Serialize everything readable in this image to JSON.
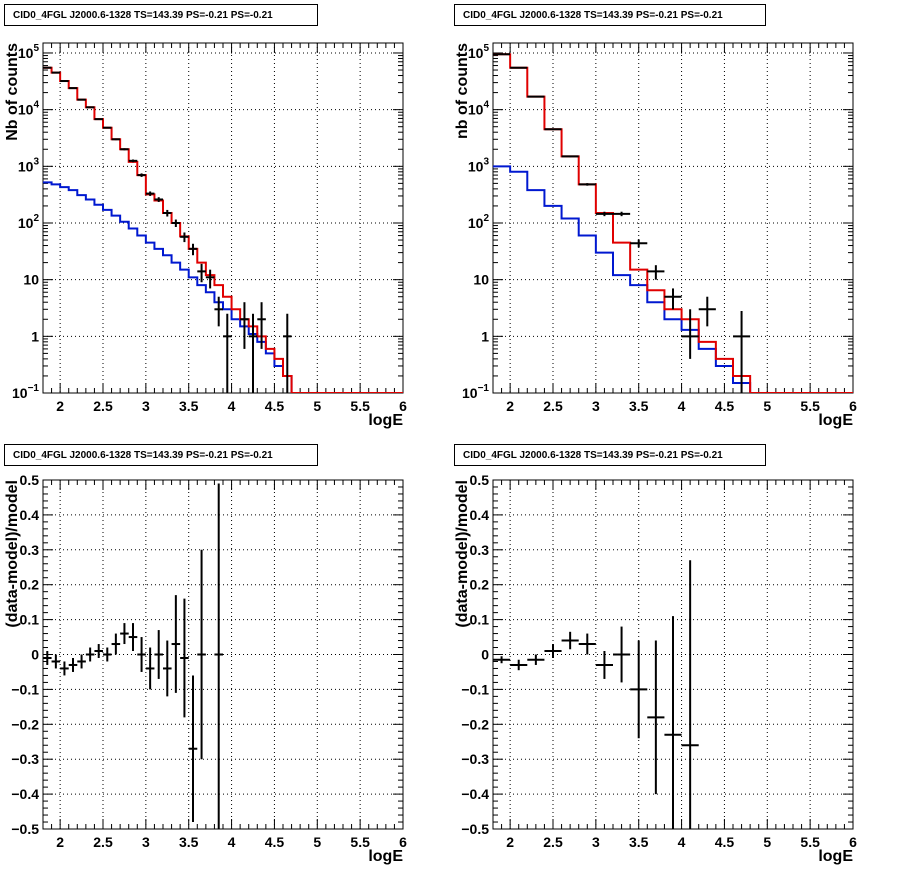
{
  "colors": {
    "data": "#000000",
    "model_total": "#e00000",
    "model_component": "#0018d0",
    "grid": "#000000"
  },
  "chart_data": [
    {
      "type": "line",
      "title": "CID0_4FGL J2000.6-1328 TS=143.39 PS=-0.21 PS=-0.21",
      "xlabel": "logE",
      "ylabel": "Nb of counts",
      "xlim": [
        1.8,
        6.0
      ],
      "ylim": [
        0.1,
        150000
      ],
      "yscale": "log",
      "grid": true,
      "xticks": [
        "2",
        "2.5",
        "3",
        "3.5",
        "4",
        "4.5",
        "5",
        "5.5",
        "6"
      ],
      "yticks": [
        {
          "v": 0.1,
          "label": "10^-1"
        },
        {
          "v": 1,
          "label": "1"
        },
        {
          "v": 10,
          "label": "10"
        },
        {
          "v": 100,
          "label": "10^2"
        },
        {
          "v": 1000,
          "label": "10^3"
        },
        {
          "v": 10000,
          "label": "10^4"
        },
        {
          "v": 100000,
          "label": "10^5"
        }
      ],
      "bin_edges": [
        1.8,
        1.9,
        2.0,
        2.1,
        2.2,
        2.3,
        2.4,
        2.5,
        2.6,
        2.7,
        2.8,
        2.9,
        3.0,
        3.1,
        3.2,
        3.3,
        3.4,
        3.5,
        3.6,
        3.7,
        3.8,
        3.9,
        4.0,
        4.1,
        4.2,
        4.3,
        4.4,
        4.5,
        4.6,
        4.7,
        4.8,
        4.9,
        5.0,
        5.1,
        5.2,
        5.3,
        5.4,
        5.5,
        5.6,
        5.7,
        5.8,
        5.9,
        6.0
      ],
      "series": [
        {
          "values": [
            55000,
            45000,
            32000,
            24000,
            15000,
            11000,
            6800,
            4800,
            3000,
            2000,
            1200,
            700,
            320,
            250,
            150,
            100,
            58,
            35,
            20,
            12,
            8,
            5,
            3,
            2,
            1.5,
            1,
            0.6,
            0.4,
            0.2,
            0.1,
            0.1,
            0.1,
            0.1,
            0.1,
            0.1,
            0.1,
            0.1,
            0.1,
            0.1,
            0.1,
            0.1,
            0.1
          ]
        },
        {
          "values": [
            520,
            480,
            430,
            380,
            310,
            260,
            210,
            170,
            135,
            105,
            80,
            60,
            45,
            35,
            27,
            20,
            15,
            11,
            8,
            6,
            4,
            3,
            2,
            1.5,
            1.1,
            0.8,
            0.5,
            0.3,
            0.2,
            0.1,
            0.1,
            0.1,
            0.1,
            0.1,
            0.1,
            0.1,
            0.1,
            0.1,
            0.1,
            0.1,
            0.1,
            0.1
          ]
        }
      ],
      "points": [
        {
          "x": 1.85,
          "y": 55000,
          "lo": 54000,
          "hi": 56000
        },
        {
          "x": 1.95,
          "y": 45000,
          "lo": 44000,
          "hi": 46000
        },
        {
          "x": 2.05,
          "y": 32000,
          "lo": 31000,
          "hi": 33000
        },
        {
          "x": 2.15,
          "y": 24000,
          "lo": 23500,
          "hi": 24500
        },
        {
          "x": 2.25,
          "y": 15000,
          "lo": 14700,
          "hi": 15300
        },
        {
          "x": 2.35,
          "y": 11000,
          "lo": 10800,
          "hi": 11200
        },
        {
          "x": 2.45,
          "y": 6800,
          "lo": 6600,
          "hi": 7000
        },
        {
          "x": 2.55,
          "y": 4800,
          "lo": 4650,
          "hi": 4950
        },
        {
          "x": 2.65,
          "y": 3000,
          "lo": 2900,
          "hi": 3100
        },
        {
          "x": 2.75,
          "y": 2000,
          "lo": 1920,
          "hi": 2080
        },
        {
          "x": 2.85,
          "y": 1250,
          "lo": 1180,
          "hi": 1320
        },
        {
          "x": 2.95,
          "y": 700,
          "lo": 650,
          "hi": 750
        },
        {
          "x": 3.05,
          "y": 330,
          "lo": 300,
          "hi": 360
        },
        {
          "x": 3.15,
          "y": 260,
          "lo": 235,
          "hi": 285
        },
        {
          "x": 3.25,
          "y": 150,
          "lo": 130,
          "hi": 170
        },
        {
          "x": 3.35,
          "y": 100,
          "lo": 85,
          "hi": 115
        },
        {
          "x": 3.45,
          "y": 57,
          "lo": 46,
          "hi": 68
        },
        {
          "x": 3.55,
          "y": 35,
          "lo": 27,
          "hi": 43
        },
        {
          "x": 3.65,
          "y": 14,
          "lo": 9,
          "hi": 19
        },
        {
          "x": 3.75,
          "y": 11,
          "lo": 7,
          "hi": 15
        },
        {
          "x": 3.85,
          "y": 3,
          "lo": 1.5,
          "hi": 5
        },
        {
          "x": 3.95,
          "y": 1,
          "lo": 0.1,
          "hi": 2.5
        },
        {
          "x": 4.15,
          "y": 2,
          "lo": 0.6,
          "hi": 4
        },
        {
          "x": 4.25,
          "y": 1,
          "lo": 0.1,
          "hi": 2.5
        },
        {
          "x": 4.35,
          "y": 2,
          "lo": 0.6,
          "hi": 4
        },
        {
          "x": 4.65,
          "y": 1,
          "lo": 0.1,
          "hi": 2.5
        }
      ]
    },
    {
      "type": "line",
      "title": "CID0_4FGL J2000.6-1328 TS=143.39 PS=-0.21 PS=-0.21",
      "xlabel": "logE",
      "ylabel": "nb of counts",
      "xlim": [
        1.8,
        6.0
      ],
      "ylim": [
        0.1,
        150000
      ],
      "yscale": "log",
      "grid": true,
      "xticks": [
        "2",
        "2.5",
        "3",
        "3.5",
        "4",
        "4.5",
        "5",
        "5.5",
        "6"
      ],
      "yticks": [
        {
          "v": 0.1,
          "label": "10^-1"
        },
        {
          "v": 1,
          "label": "1"
        },
        {
          "v": 10,
          "label": "10"
        },
        {
          "v": 100,
          "label": "10^2"
        },
        {
          "v": 1000,
          "label": "10^3"
        },
        {
          "v": 10000,
          "label": "10^4"
        },
        {
          "v": 100000,
          "label": "10^5"
        }
      ],
      "bin_edges": [
        1.8,
        2.0,
        2.2,
        2.4,
        2.6,
        2.8,
        3.0,
        3.2,
        3.4,
        3.6,
        3.8,
        4.0,
        4.2,
        4.4,
        4.6,
        4.8,
        5.0,
        5.2,
        5.4,
        5.6,
        5.8,
        6.0
      ],
      "series": [
        {
          "values": [
            95000,
            55000,
            17000,
            4500,
            1500,
            480,
            150,
            45,
            15,
            6.5,
            3,
            2,
            0.8,
            0.4,
            0.2,
            0.1,
            0.1,
            0.1,
            0.1,
            0.1,
            0.1
          ]
        },
        {
          "values": [
            1000,
            800,
            380,
            200,
            120,
            60,
            30,
            12,
            8,
            4,
            2,
            1.3,
            0.6,
            0.3,
            0.15,
            0.1,
            0.1,
            0.1,
            0.1,
            0.1,
            0.1
          ]
        }
      ],
      "points": [
        {
          "x": 1.9,
          "y": 95000,
          "lo": 94000,
          "hi": 96000
        },
        {
          "x": 2.1,
          "y": 55000,
          "lo": 54300,
          "hi": 55700
        },
        {
          "x": 2.3,
          "y": 17000,
          "lo": 16700,
          "hi": 17300
        },
        {
          "x": 2.5,
          "y": 4500,
          "lo": 4350,
          "hi": 4650
        },
        {
          "x": 2.7,
          "y": 1500,
          "lo": 1450,
          "hi": 1550
        },
        {
          "x": 2.9,
          "y": 480,
          "lo": 455,
          "hi": 505
        },
        {
          "x": 3.1,
          "y": 145,
          "lo": 132,
          "hi": 158
        },
        {
          "x": 3.3,
          "y": 145,
          "lo": 132,
          "hi": 158
        },
        {
          "x": 3.5,
          "y": 44,
          "lo": 37,
          "hi": 51
        },
        {
          "x": 3.7,
          "y": 14,
          "lo": 10,
          "hi": 18
        },
        {
          "x": 3.9,
          "y": 5,
          "lo": 3,
          "hi": 7
        },
        {
          "x": 4.1,
          "y": 1,
          "lo": 0.4,
          "hi": 3
        },
        {
          "x": 4.3,
          "y": 3,
          "lo": 1.5,
          "hi": 5
        },
        {
          "x": 4.7,
          "y": 1,
          "lo": 0.1,
          "hi": 2.8
        }
      ]
    },
    {
      "type": "scatter",
      "title": "CID0_4FGL J2000.6-1328 TS=143.39 PS=-0.21 PS=-0.21",
      "xlabel": "logE",
      "ylabel": "(data-model)/model",
      "xlim": [
        1.8,
        6.0
      ],
      "ylim": [
        -0.5,
        0.5
      ],
      "yscale": "linear",
      "grid": true,
      "xticks": [
        "2",
        "2.5",
        "3",
        "3.5",
        "4",
        "4.5",
        "5",
        "5.5",
        "6"
      ],
      "yticks": [
        {
          "v": -0.5,
          "label": "−0.5"
        },
        {
          "v": -0.4,
          "label": "−0.4"
        },
        {
          "v": -0.3,
          "label": "−0.3"
        },
        {
          "v": -0.2,
          "label": "−0.2"
        },
        {
          "v": -0.1,
          "label": "−0.1"
        },
        {
          "v": 0,
          "label": "0"
        },
        {
          "v": 0.1,
          "label": "0.1"
        },
        {
          "v": 0.2,
          "label": "0.2"
        },
        {
          "v": 0.3,
          "label": "0.3"
        },
        {
          "v": 0.4,
          "label": "0.4"
        },
        {
          "v": 0.5,
          "label": "0.5"
        }
      ],
      "bin_halfwidth": 0.05,
      "points": [
        {
          "x": 1.85,
          "y": -0.01,
          "lo": -0.03,
          "hi": 0.01
        },
        {
          "x": 1.95,
          "y": -0.02,
          "lo": -0.04,
          "hi": 0.0
        },
        {
          "x": 2.05,
          "y": -0.04,
          "lo": -0.06,
          "hi": -0.02
        },
        {
          "x": 2.15,
          "y": -0.03,
          "lo": -0.05,
          "hi": -0.01
        },
        {
          "x": 2.25,
          "y": -0.02,
          "lo": -0.04,
          "hi": 0.0
        },
        {
          "x": 2.35,
          "y": 0.0,
          "lo": -0.02,
          "hi": 0.02
        },
        {
          "x": 2.45,
          "y": 0.01,
          "lo": -0.01,
          "hi": 0.03
        },
        {
          "x": 2.55,
          "y": 0.0,
          "lo": -0.02,
          "hi": 0.02
        },
        {
          "x": 2.65,
          "y": 0.03,
          "lo": 0.0,
          "hi": 0.06
        },
        {
          "x": 2.75,
          "y": 0.06,
          "lo": 0.03,
          "hi": 0.09
        },
        {
          "x": 2.85,
          "y": 0.05,
          "lo": 0.01,
          "hi": 0.09
        },
        {
          "x": 2.95,
          "y": 0.0,
          "lo": -0.05,
          "hi": 0.05
        },
        {
          "x": 3.05,
          "y": -0.04,
          "lo": -0.1,
          "hi": 0.02
        },
        {
          "x": 3.15,
          "y": 0.0,
          "lo": -0.07,
          "hi": 0.07
        },
        {
          "x": 3.25,
          "y": -0.04,
          "lo": -0.12,
          "hi": 0.04
        },
        {
          "x": 3.35,
          "y": 0.03,
          "lo": -0.11,
          "hi": 0.17
        },
        {
          "x": 3.45,
          "y": -0.01,
          "lo": -0.18,
          "hi": 0.16
        },
        {
          "x": 3.55,
          "y": -0.27,
          "lo": -0.48,
          "hi": -0.06
        },
        {
          "x": 3.65,
          "y": 0.0,
          "lo": -0.3,
          "hi": 0.3
        },
        {
          "x": 3.85,
          "y": 0.0,
          "lo": -0.5,
          "hi": 0.49
        }
      ]
    },
    {
      "type": "scatter",
      "title": "CID0_4FGL J2000.6-1328 TS=143.39 PS=-0.21 PS=-0.21",
      "xlabel": "logE",
      "ylabel": "(data-model)/model",
      "xlim": [
        1.8,
        6.0
      ],
      "ylim": [
        -0.5,
        0.5
      ],
      "yscale": "linear",
      "grid": true,
      "xticks": [
        "2",
        "2.5",
        "3",
        "3.5",
        "4",
        "4.5",
        "5",
        "5.5",
        "6"
      ],
      "yticks": [
        {
          "v": -0.5,
          "label": "−0.5"
        },
        {
          "v": -0.4,
          "label": "−0.4"
        },
        {
          "v": -0.3,
          "label": "−0.3"
        },
        {
          "v": -0.2,
          "label": "−0.2"
        },
        {
          "v": -0.1,
          "label": "−0.1"
        },
        {
          "v": 0,
          "label": "0"
        },
        {
          "v": 0.1,
          "label": "0.1"
        },
        {
          "v": 0.2,
          "label": "0.2"
        },
        {
          "v": 0.3,
          "label": "0.3"
        },
        {
          "v": 0.4,
          "label": "0.4"
        },
        {
          "v": 0.5,
          "label": "0.5"
        }
      ],
      "bin_halfwidth": 0.1,
      "points": [
        {
          "x": 1.9,
          "y": -0.015,
          "lo": -0.025,
          "hi": -0.005
        },
        {
          "x": 2.1,
          "y": -0.03,
          "lo": -0.045,
          "hi": -0.015
        },
        {
          "x": 2.3,
          "y": -0.015,
          "lo": -0.03,
          "hi": 0.0
        },
        {
          "x": 2.5,
          "y": 0.01,
          "lo": -0.01,
          "hi": 0.03
        },
        {
          "x": 2.7,
          "y": 0.04,
          "lo": 0.015,
          "hi": 0.065
        },
        {
          "x": 2.9,
          "y": 0.03,
          "lo": 0.0,
          "hi": 0.06
        },
        {
          "x": 3.1,
          "y": -0.03,
          "lo": -0.07,
          "hi": 0.01
        },
        {
          "x": 3.3,
          "y": 0.0,
          "lo": -0.08,
          "hi": 0.08
        },
        {
          "x": 3.5,
          "y": -0.1,
          "lo": -0.24,
          "hi": 0.04
        },
        {
          "x": 3.7,
          "y": -0.18,
          "lo": -0.4,
          "hi": 0.04
        },
        {
          "x": 3.9,
          "y": -0.23,
          "lo": -0.5,
          "hi": 0.11
        },
        {
          "x": 4.1,
          "y": -0.26,
          "lo": -0.5,
          "hi": 0.27
        }
      ]
    }
  ]
}
